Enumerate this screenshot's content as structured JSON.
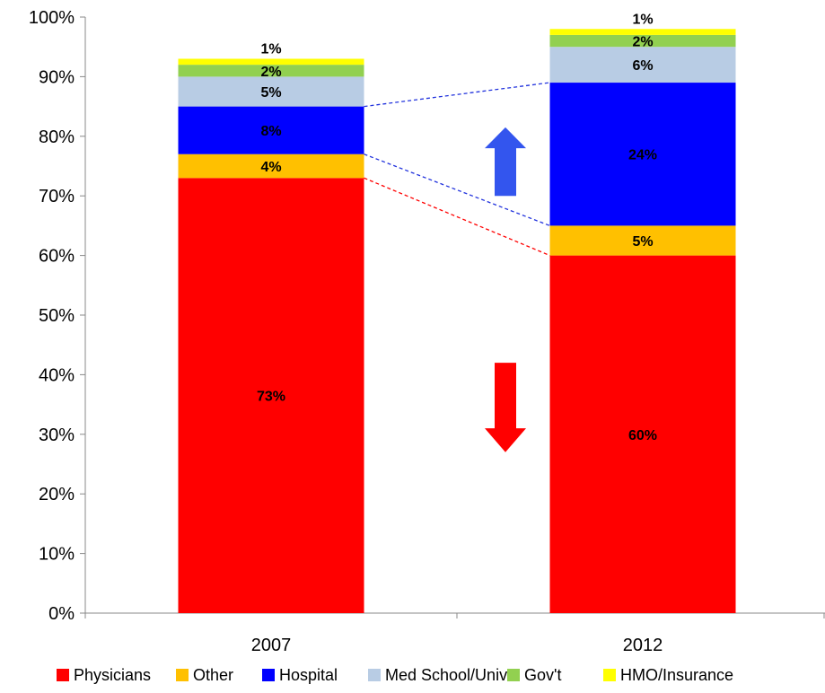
{
  "chart_data": {
    "type": "bar",
    "stacked": true,
    "categories": [
      "2007",
      "2012"
    ],
    "series": [
      {
        "name": "Physicians",
        "color": "#ff0000",
        "values": [
          73,
          60
        ],
        "labels": [
          "73%",
          "60%"
        ]
      },
      {
        "name": "Other",
        "color": "#ffc000",
        "values": [
          4,
          5
        ],
        "labels": [
          "4%",
          "5%"
        ]
      },
      {
        "name": "Hospital",
        "color": "#0000ff",
        "values": [
          8,
          24
        ],
        "labels": [
          "8%",
          "24%"
        ]
      },
      {
        "name": "Med School/Univ.",
        "color": "#b8cce4",
        "values": [
          5,
          6
        ],
        "labels": [
          "5%",
          "6%"
        ]
      },
      {
        "name": "Gov't",
        "color": "#92d050",
        "values": [
          2,
          2
        ],
        "labels": [
          "2%",
          "2%"
        ]
      },
      {
        "name": "HMO/Insurance",
        "color": "#ffff00",
        "values": [
          1,
          1
        ],
        "labels": [
          "1%",
          "1%"
        ]
      }
    ],
    "ylim": [
      0,
      100
    ],
    "yticks": [
      0,
      10,
      20,
      30,
      40,
      50,
      60,
      70,
      80,
      90,
      100
    ],
    "ytick_labels": [
      "0%",
      "10%",
      "20%",
      "30%",
      "40%",
      "50%",
      "60%",
      "70%",
      "80%",
      "90%",
      "100%"
    ],
    "legend_position": "bottom",
    "grid": false,
    "connectors": [
      {
        "from": 85,
        "to": 89,
        "color": "#2233dd"
      },
      {
        "from": 77,
        "to": 65,
        "color": "#2233dd"
      },
      {
        "from": 73,
        "to": 60,
        "color": "#ff0000"
      }
    ],
    "arrows": [
      {
        "direction": "up",
        "color": "#3355ee"
      },
      {
        "direction": "down",
        "color": "#ff0000"
      }
    ]
  }
}
